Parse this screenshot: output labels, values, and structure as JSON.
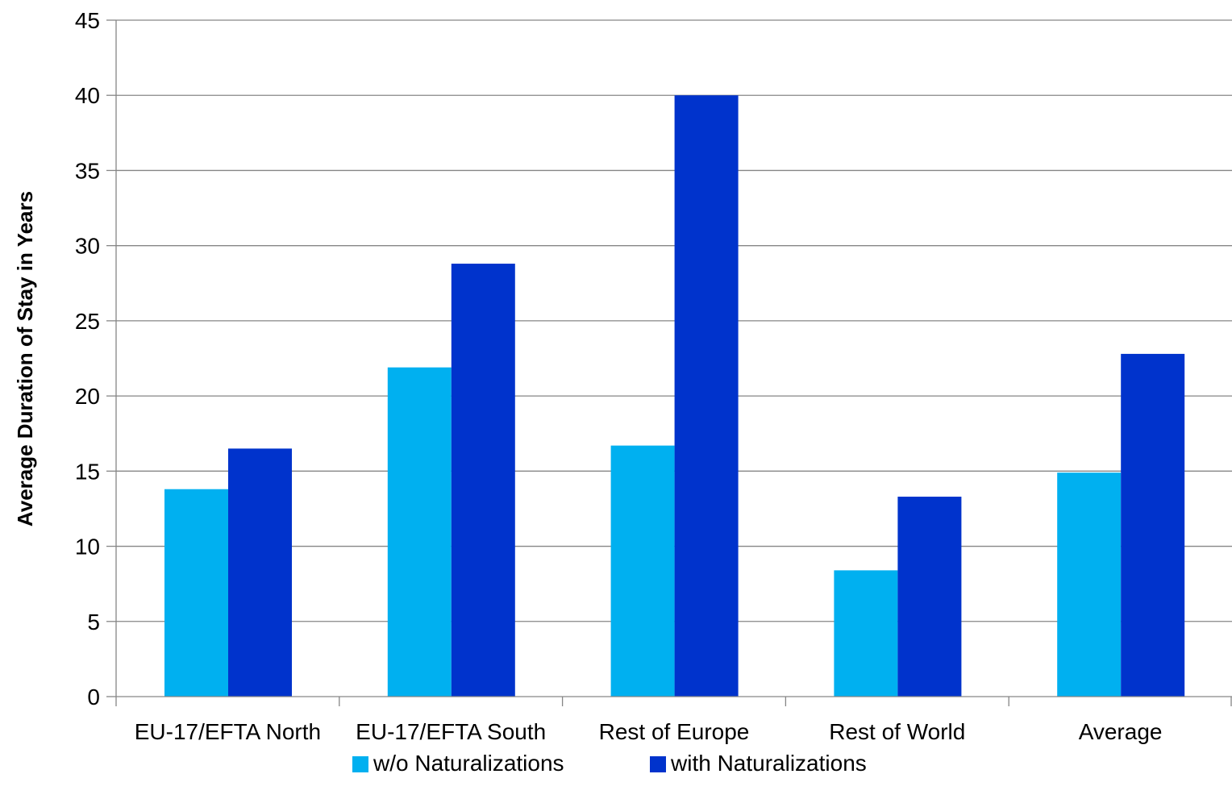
{
  "chart_data": {
    "type": "bar",
    "title": "",
    "xlabel": "",
    "ylabel": "Average Duration of Stay in Years",
    "categories": [
      "EU-17/EFTA North",
      "EU-17/EFTA South",
      "Rest of Europe",
      "Rest of World",
      "Average"
    ],
    "series": [
      {
        "name": "w/o Naturalizations",
        "color": "#00B0F0",
        "values": [
          13.8,
          21.9,
          16.7,
          8.4,
          14.9
        ]
      },
      {
        "name": "with Naturalizations",
        "color": "#0033CC",
        "values": [
          16.5,
          28.8,
          40.0,
          13.3,
          22.8
        ]
      }
    ],
    "ylim": [
      0,
      45
    ],
    "yticks": [
      0,
      5,
      10,
      15,
      20,
      25,
      30,
      35,
      40,
      45
    ],
    "grid": true,
    "legend_position": "bottom"
  }
}
